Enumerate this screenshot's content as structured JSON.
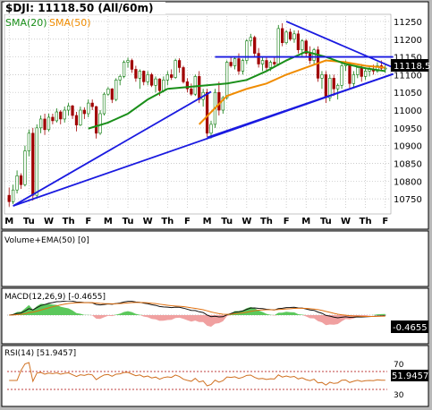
{
  "chart_data": {
    "type": "candlestick",
    "title": "$DJI: 11118.50 (All/60m)",
    "legend": [
      {
        "label": "SMA(20)",
        "color": "#1a8f1a"
      },
      {
        "label": "SMA(50)",
        "color": "#f08c00"
      }
    ],
    "last_price_label": "11118.5",
    "price_axis": {
      "range": [
        10720,
        11265
      ],
      "ticks": [
        10750,
        10800,
        10850,
        10900,
        10950,
        11000,
        11050,
        11100,
        11150,
        11200,
        11250
      ]
    },
    "x_day_labels": [
      "M",
      "Tu",
      "W",
      "Th",
      "F",
      "M",
      "Tu",
      "W",
      "Th",
      "F",
      "M",
      "Tu",
      "W",
      "Th",
      "F",
      "M",
      "Tu",
      "W",
      "Th",
      "F"
    ],
    "candles": [
      [
        10760,
        10782,
        10728,
        10742
      ],
      [
        10742,
        10790,
        10735,
        10775
      ],
      [
        10775,
        10830,
        10765,
        10815
      ],
      [
        10815,
        10822,
        10778,
        10790
      ],
      [
        10790,
        10900,
        10785,
        10885
      ],
      [
        10885,
        10945,
        10870,
        10935
      ],
      [
        10935,
        10950,
        10745,
        10760
      ],
      [
        10760,
        10960,
        10755,
        10950
      ],
      [
        10950,
        10985,
        10935,
        10975
      ],
      [
        10975,
        10990,
        10930,
        10945
      ],
      [
        10945,
        10990,
        10940,
        10980
      ],
      [
        10980,
        10990,
        10960,
        10970
      ],
      [
        10970,
        11005,
        10965,
        10995
      ],
      [
        10995,
        11000,
        10960,
        10975
      ],
      [
        10975,
        11010,
        10965,
        11000
      ],
      [
        11000,
        11020,
        10985,
        11012
      ],
      [
        11012,
        11015,
        10975,
        10985
      ],
      [
        10985,
        10995,
        10940,
        10958
      ],
      [
        10958,
        11010,
        10955,
        11000
      ],
      [
        11000,
        11008,
        10975,
        10990
      ],
      [
        10990,
        11030,
        10980,
        11020
      ],
      [
        11020,
        11030,
        11000,
        11010
      ],
      [
        11010,
        11012,
        10920,
        10935
      ],
      [
        10935,
        11000,
        10930,
        10990
      ],
      [
        10990,
        11050,
        10985,
        11045
      ],
      [
        11045,
        11065,
        11040,
        11060
      ],
      [
        11060,
        11062,
        11020,
        11030
      ],
      [
        11030,
        11090,
        11025,
        11085
      ],
      [
        11085,
        11100,
        11070,
        11095
      ],
      [
        11095,
        11140,
        11090,
        11135
      ],
      [
        11135,
        11148,
        11120,
        11140
      ],
      [
        11140,
        11145,
        11105,
        11115
      ],
      [
        11115,
        11125,
        11080,
        11090
      ],
      [
        11090,
        11115,
        11060,
        11110
      ],
      [
        11110,
        11112,
        11070,
        11080
      ],
      [
        11080,
        11110,
        11070,
        11100
      ],
      [
        11100,
        11105,
        11065,
        11070
      ],
      [
        11070,
        11095,
        11050,
        11088
      ],
      [
        11088,
        11090,
        11040,
        11055
      ],
      [
        11055,
        11095,
        11050,
        11085
      ],
      [
        11085,
        11110,
        11070,
        11100
      ],
      [
        11100,
        11115,
        11085,
        11092
      ],
      [
        11092,
        11145,
        11088,
        11140
      ],
      [
        11140,
        11146,
        11105,
        11120
      ],
      [
        11120,
        11125,
        11075,
        11080
      ],
      [
        11080,
        11090,
        11050,
        11060
      ],
      [
        11060,
        11075,
        11040,
        11045
      ],
      [
        11045,
        11100,
        11040,
        11095
      ],
      [
        11095,
        11110,
        11020,
        11030
      ],
      [
        11030,
        11060,
        11010,
        11050
      ],
      [
        11050,
        11060,
        10925,
        10935
      ],
      [
        10935,
        10970,
        10920,
        10960
      ],
      [
        10960,
        11060,
        10950,
        11050
      ],
      [
        11050,
        11080,
        10985,
        11000
      ],
      [
        11000,
        11040,
        10990,
        11035
      ],
      [
        11035,
        11140,
        11030,
        11135
      ],
      [
        11135,
        11148,
        11120,
        11125
      ],
      [
        11125,
        11150,
        11115,
        11145
      ],
      [
        11145,
        11160,
        11100,
        11110
      ],
      [
        11110,
        11145,
        11100,
        11140
      ],
      [
        11140,
        11200,
        11130,
        11195
      ],
      [
        11195,
        11215,
        11180,
        11205
      ],
      [
        11205,
        11210,
        11150,
        11160
      ],
      [
        11160,
        11175,
        11120,
        11130
      ],
      [
        11130,
        11150,
        11110,
        11140
      ],
      [
        11140,
        11150,
        11110,
        11120
      ],
      [
        11120,
        11140,
        11110,
        11135
      ],
      [
        11135,
        11150,
        11120,
        11130
      ],
      [
        11130,
        11240,
        11125,
        11230
      ],
      [
        11230,
        11245,
        11180,
        11190
      ],
      [
        11190,
        11225,
        11185,
        11220
      ],
      [
        11220,
        11230,
        11195,
        11200
      ],
      [
        11200,
        11225,
        11190,
        11215
      ],
      [
        11215,
        11225,
        11160,
        11170
      ],
      [
        11170,
        11200,
        11150,
        11195
      ],
      [
        11195,
        11200,
        11150,
        11160
      ],
      [
        11160,
        11180,
        11130,
        11140
      ],
      [
        11140,
        11175,
        11130,
        11170
      ],
      [
        11170,
        11180,
        11080,
        11090
      ],
      [
        11090,
        11110,
        11060,
        11100
      ],
      [
        11100,
        11110,
        11020,
        11035
      ],
      [
        11035,
        11100,
        11025,
        11090
      ],
      [
        11090,
        11100,
        11040,
        11060
      ],
      [
        11060,
        11075,
        11030,
        11070
      ],
      [
        11070,
        11135,
        11060,
        11125
      ],
      [
        11125,
        11140,
        11110,
        11130
      ],
      [
        11130,
        11135,
        11060,
        11075
      ],
      [
        11075,
        11110,
        11065,
        11100
      ],
      [
        11100,
        11125,
        11090,
        11120
      ],
      [
        11120,
        11130,
        11080,
        11095
      ],
      [
        11095,
        11120,
        11085,
        11110
      ],
      [
        11110,
        11125,
        11095,
        11115
      ],
      [
        11115,
        11128,
        11100,
        11110
      ],
      [
        11110,
        11135,
        11105,
        11125
      ],
      [
        11125,
        11140,
        11110,
        11118
      ],
      [
        11118,
        11130,
        11105,
        11118.5
      ]
    ],
    "sma20": [
      [
        0,
        null
      ],
      [
        20,
        10948
      ],
      [
        25,
        10965
      ],
      [
        30,
        10990
      ],
      [
        35,
        11030
      ],
      [
        40,
        11060
      ],
      [
        45,
        11065
      ],
      [
        50,
        11070
      ],
      [
        55,
        11075
      ],
      [
        60,
        11085
      ],
      [
        65,
        11110
      ],
      [
        70,
        11140
      ],
      [
        75,
        11165
      ],
      [
        80,
        11150
      ],
      [
        85,
        11130
      ],
      [
        90,
        11118
      ],
      [
        95,
        11110
      ]
    ],
    "sma50": [
      [
        0,
        null
      ],
      [
        48,
        10960
      ],
      [
        55,
        11040
      ],
      [
        60,
        11060
      ],
      [
        65,
        11075
      ],
      [
        70,
        11100
      ],
      [
        75,
        11120
      ],
      [
        80,
        11140
      ],
      [
        85,
        11135
      ],
      [
        90,
        11125
      ],
      [
        95,
        11120
      ]
    ],
    "trendlines": [
      {
        "from": [
          1,
          10730
        ],
        "to": [
          51,
          11052
        ]
      },
      {
        "from": [
          1,
          10730
        ],
        "to": [
          97,
          11102
        ]
      },
      {
        "from": [
          50,
          10923
        ],
        "to": [
          97,
          11102
        ]
      },
      {
        "from": [
          52,
          11150
        ],
        "to": [
          97,
          11150
        ]
      },
      {
        "from": [
          70,
          11250
        ],
        "to": [
          97,
          11120
        ]
      }
    ],
    "volume_panel": {
      "label": "Volume+EMA(50) [0]"
    },
    "macd_panel": {
      "label": "MACD(12,26,9) [-0.4655]",
      "value_label": "-0.4655"
    },
    "rsi_panel": {
      "label": "RSI(14) [51.9457]",
      "ticks": [
        70,
        30
      ],
      "value_label": "51.9457"
    }
  }
}
